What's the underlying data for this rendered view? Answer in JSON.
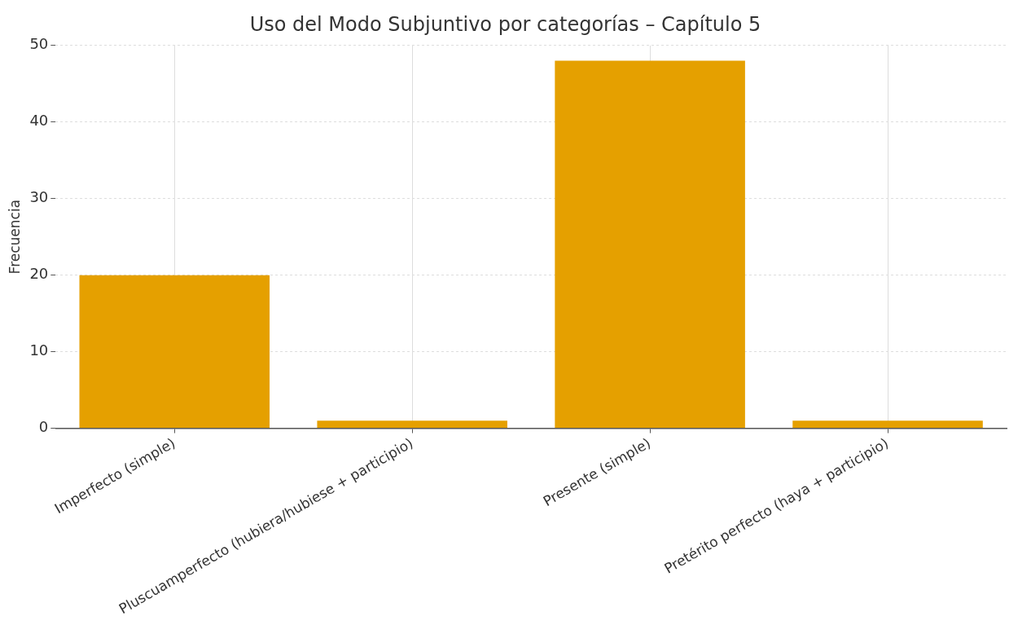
{
  "chart_data": {
    "type": "bar",
    "title": "Uso del Modo Subjuntivo por categorías – Capítulo 5",
    "ylabel": "Frecuencia",
    "categories": [
      "Imperfecto (simple)",
      "Pluscuamperfecto (hubiera/hubiese + participio)",
      "Presente (simple)",
      "Pretérito perfecto (haya + participio)"
    ],
    "values": [
      20,
      1,
      48,
      1
    ],
    "color": "#e5a000",
    "ylim": [
      0,
      50
    ],
    "yticks": [
      0,
      10,
      20,
      30,
      40,
      50
    ],
    "grid": true,
    "legend": false
  }
}
